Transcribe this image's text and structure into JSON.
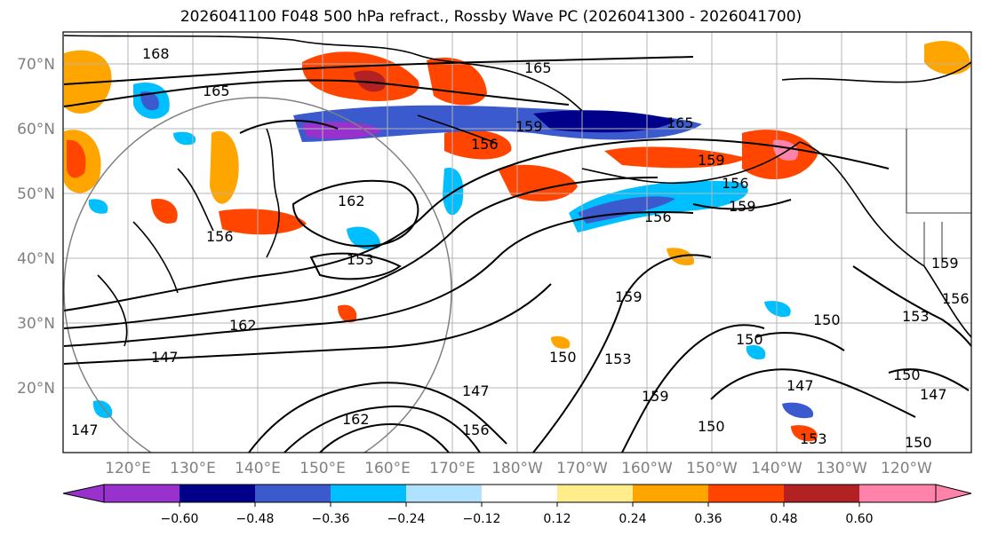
{
  "title": "2026041100 F048 500 hPa refract., Rossby Wave PC (2026041300 - 2026041700)",
  "lat_labels": [
    "70°N",
    "60°N",
    "50°N",
    "40°N",
    "30°N",
    "20°N"
  ],
  "lon_labels": [
    "120°E",
    "130°E",
    "140°E",
    "150°E",
    "160°E",
    "170°E",
    "180°W",
    "170°W",
    "160°W",
    "150°W",
    "140°W",
    "130°W",
    "120°W"
  ],
  "contour_labels": [
    "168",
    "165",
    "165",
    "165",
    "162",
    "162",
    "162",
    "159",
    "159",
    "159",
    "159",
    "159",
    "159",
    "156",
    "156",
    "156",
    "156",
    "156",
    "156",
    "153",
    "153",
    "153",
    "153",
    "150",
    "150",
    "150",
    "150",
    "150",
    "150",
    "147",
    "147",
    "147",
    "147",
    "147"
  ],
  "colorbar": {
    "colors": [
      "#9932CC",
      "#00008B",
      "#3A5ACD",
      "#00BFFF",
      "#B0E2FF",
      "#FFFFFF",
      "#FFEC8B",
      "#FFA500",
      "#FF4500",
      "#B22222",
      "#FF82AB"
    ],
    "tick_labels": [
      "−0.60",
      "−0.48",
      "−0.36",
      "−0.24",
      "−0.12",
      "0.12",
      "0.24",
      "0.36",
      "0.48",
      "0.60"
    ]
  },
  "colors": {
    "land": "#000000",
    "grid": "#b4b4b4",
    "contour": "#000000",
    "label": "#808080"
  }
}
